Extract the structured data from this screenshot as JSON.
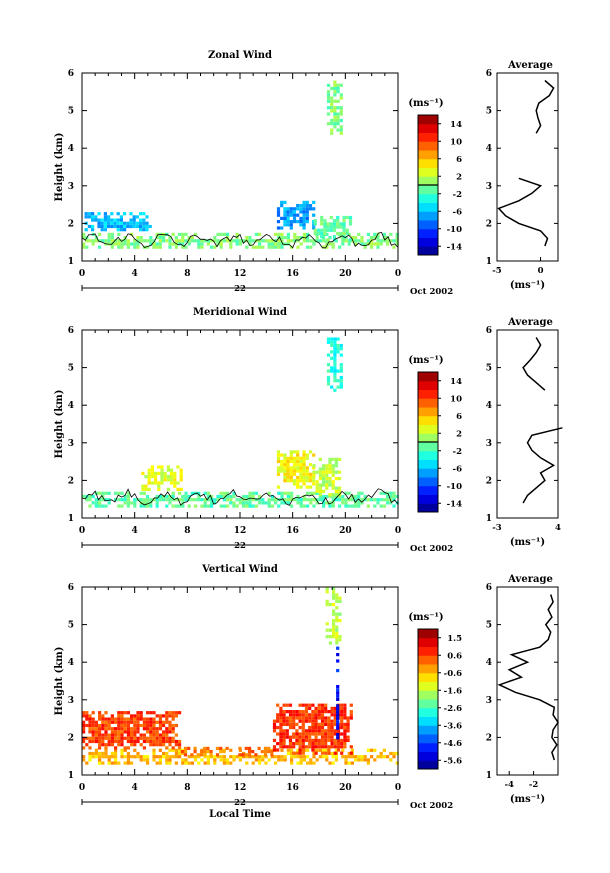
{
  "chart_data": [
    {
      "type": "heatmap",
      "title": "Zonal Wind",
      "ylabel": "Height (km)",
      "ylim": [
        1,
        6
      ],
      "yticks": [
        "1",
        "2",
        "3",
        "4",
        "5",
        "6"
      ],
      "xticks": [
        "0",
        "4",
        "8",
        "12",
        "16",
        "20",
        "0"
      ],
      "xlim_hours": [
        0,
        24
      ],
      "date_label": "22",
      "month_label": "Oct 2002",
      "colorbar": {
        "unit": "(ms⁻¹)",
        "ticks": [
          "14",
          "10",
          "6",
          "2",
          "-2",
          "-6",
          "-10",
          "-14"
        ],
        "range": [
          -16,
          16
        ],
        "zero_line": 0
      },
      "regions": [
        {
          "x": [
            0,
            24
          ],
          "y": [
            1.35,
            1.75
          ],
          "value": 0
        },
        {
          "x": [
            0.2,
            5.2
          ],
          "y": [
            1.8,
            2.3
          ],
          "value": -6
        },
        {
          "x": [
            14.8,
            17.6
          ],
          "y": [
            1.9,
            2.6
          ],
          "value": -7
        },
        {
          "x": [
            17.6,
            20.4
          ],
          "y": [
            1.6,
            2.2
          ],
          "value": -1
        },
        {
          "x": [
            18.6,
            19.6
          ],
          "y": [
            4.4,
            5.8
          ],
          "value": 0
        }
      ],
      "profile": {
        "title": "Average",
        "xlabel": "(ms⁻¹)",
        "xticks": [
          "-5",
          "0"
        ],
        "xlim": [
          -5,
          2
        ],
        "height": [
          1.4,
          1.6,
          1.8,
          2.0,
          2.2,
          2.4,
          2.6,
          2.8,
          3.0,
          3.2,
          4.4,
          4.6,
          4.8,
          5.0,
          5.2,
          5.4,
          5.6,
          5.8
        ],
        "value": [
          0.5,
          0.8,
          0.0,
          -2.5,
          -4.0,
          -4.8,
          -2.5,
          -1.0,
          0.0,
          -2.5,
          -0.5,
          0.0,
          -0.3,
          -0.5,
          -0.2,
          1.0,
          1.5,
          0.5
        ]
      }
    },
    {
      "type": "heatmap",
      "title": "Meridional Wind",
      "ylabel": "Height (km)",
      "ylim": [
        1,
        6
      ],
      "yticks": [
        "1",
        "2",
        "3",
        "4",
        "5",
        "6"
      ],
      "xticks": [
        "0",
        "4",
        "8",
        "12",
        "16",
        "20",
        "0"
      ],
      "xlim_hours": [
        0,
        24
      ],
      "date_label": "22",
      "month_label": "Oct 2002",
      "colorbar": {
        "unit": "(ms⁻¹)",
        "ticks": [
          "14",
          "10",
          "6",
          "2",
          "-2",
          "-6",
          "-10",
          "-14"
        ],
        "range": [
          -16,
          16
        ],
        "zero_line": 0
      },
      "regions": [
        {
          "x": [
            0,
            24
          ],
          "y": [
            1.35,
            1.7
          ],
          "value": -1
        },
        {
          "x": [
            4.5,
            7.5
          ],
          "y": [
            1.8,
            2.4
          ],
          "value": 3
        },
        {
          "x": [
            14.8,
            17.5
          ],
          "y": [
            1.8,
            2.8
          ],
          "value": 4
        },
        {
          "x": [
            17.5,
            19.5
          ],
          "y": [
            1.6,
            2.6
          ],
          "value": 2
        },
        {
          "x": [
            18.6,
            19.6
          ],
          "y": [
            4.4,
            5.8
          ],
          "value": -3
        }
      ],
      "profile": {
        "title": "Average",
        "xlabel": "(ms⁻¹)",
        "xticks": [
          "-3",
          "4"
        ],
        "xlim": [
          -3,
          4
        ],
        "height": [
          1.4,
          1.6,
          1.8,
          2.0,
          2.2,
          2.4,
          2.6,
          2.8,
          3.0,
          3.2,
          3.4,
          4.4,
          4.6,
          4.8,
          5.0,
          5.2,
          5.4,
          5.6,
          5.8
        ],
        "value": [
          0.0,
          0.5,
          1.5,
          2.5,
          2.0,
          3.5,
          2.0,
          1.0,
          0.5,
          1.0,
          4.5,
          2.5,
          1.5,
          0.5,
          0.0,
          0.8,
          1.5,
          2.0,
          1.5
        ]
      }
    },
    {
      "type": "heatmap",
      "title": "Vertical Wind",
      "ylabel": "Height (km)",
      "xlabel": "Local Time",
      "ylim": [
        1,
        6
      ],
      "yticks": [
        "1",
        "2",
        "3",
        "4",
        "5",
        "6"
      ],
      "xticks": [
        "0",
        "4",
        "8",
        "12",
        "16",
        "20",
        "0"
      ],
      "xlim_hours": [
        0,
        24
      ],
      "date_label": "22",
      "month_label": "Oct 2002",
      "colorbar": {
        "unit": "(ms⁻¹)",
        "ticks": [
          "1.5",
          "0.6",
          "-0.6",
          "-1.6",
          "-2.6",
          "-3.6",
          "-4.6",
          "-5.6"
        ],
        "range": [
          -6.1,
          1.9
        ],
        "zero_line": null
      },
      "regions": [
        {
          "x": [
            0,
            24
          ],
          "y": [
            1.35,
            1.7
          ],
          "value": -0.6
        },
        {
          "x": [
            0,
            7.5
          ],
          "y": [
            1.7,
            2.7
          ],
          "value": 0.4
        },
        {
          "x": [
            7.5,
            14.5
          ],
          "y": [
            1.55,
            1.75
          ],
          "value": 0.0
        },
        {
          "x": [
            14.5,
            20.5
          ],
          "y": [
            1.6,
            2.9
          ],
          "value": 0.5
        },
        {
          "x": [
            18.5,
            19.7
          ],
          "y": [
            4.5,
            6.0
          ],
          "value": -1.6
        },
        {
          "x": [
            19.3,
            19.5
          ],
          "y": [
            2.0,
            4.5
          ],
          "value": -5.0
        }
      ],
      "profile": {
        "title": "Average",
        "xlabel": "(ms⁻¹)",
        "xticks": [
          "-4",
          "-2"
        ],
        "xlim": [
          -5,
          0
        ],
        "height": [
          1.4,
          1.6,
          1.8,
          2.0,
          2.2,
          2.4,
          2.6,
          2.8,
          3.0,
          3.2,
          3.4,
          3.6,
          3.8,
          4.0,
          4.2,
          4.4,
          4.6,
          4.8,
          5.0,
          5.2,
          5.4,
          5.6,
          5.8
        ],
        "value": [
          -0.3,
          -0.5,
          -0.1,
          -0.5,
          -0.4,
          0.0,
          -0.4,
          -0.3,
          -1.5,
          -3.5,
          -4.8,
          -3.0,
          -4.0,
          -2.5,
          -3.8,
          -1.5,
          -0.8,
          -0.6,
          -1.0,
          -0.5,
          -0.8,
          -0.4,
          -0.6
        ]
      }
    }
  ]
}
